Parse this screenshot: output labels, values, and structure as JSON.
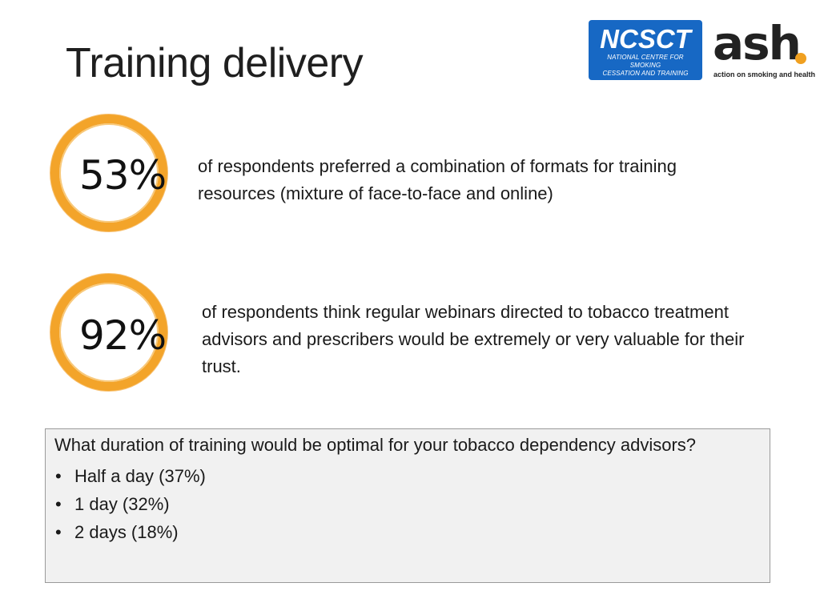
{
  "slide": {
    "title": "Training delivery"
  },
  "logos": {
    "ncsct": {
      "mark": "NCSCT",
      "subtitle_line1": "NATIONAL CENTRE FOR SMOKING",
      "subtitle_line2": "CESSATION AND TRAINING",
      "color": "#1768c4"
    },
    "ash": {
      "mark": "ash",
      "tagline": "action on smoking and health",
      "dot_color": "#f0a020"
    }
  },
  "stats": [
    {
      "value": "53%",
      "text": "of respondents preferred a combination of formats for training resources (mixture of face-to-face and online)"
    },
    {
      "value": "92%",
      "text": "of respondents think regular webinars directed to tobacco treatment advisors and prescribers would be extremely or very valuable for their trust."
    }
  ],
  "question_box": {
    "question": "What duration of training would be optimal for your tobacco dependency advisors?",
    "bullet": "•",
    "options": [
      "Half a day (37%)",
      "1 day (32%)",
      "2 days (18%)"
    ]
  },
  "colors": {
    "accent_ring": "#f3a42a",
    "box_background": "#f1f1f1"
  }
}
